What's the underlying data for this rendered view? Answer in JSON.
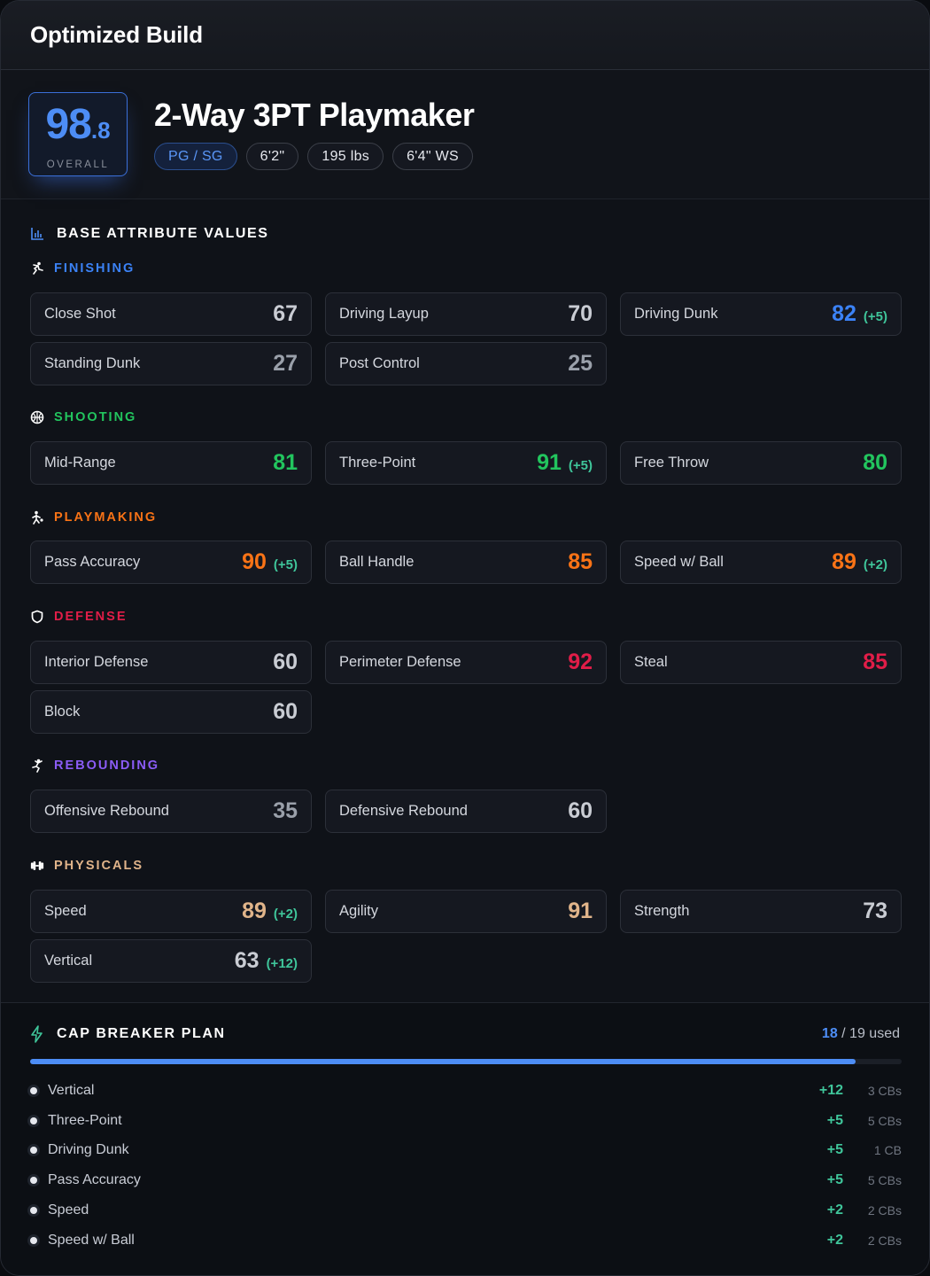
{
  "header": {
    "title": "Optimized Build"
  },
  "build": {
    "overall_int": "98",
    "overall_dec": ".8",
    "overall_label": "OVERALL",
    "name": "2-Way 3PT Playmaker",
    "pills": {
      "position": "PG / SG",
      "height": "6'2\"",
      "weight": "195 lbs",
      "wingspan": "6'4\" WS"
    }
  },
  "attributes": {
    "section_title": "BASE ATTRIBUTE VALUES",
    "finishing": {
      "title": "FINISHING",
      "color": "#3b82f6",
      "icon": "finishing-runner-icon",
      "items": [
        {
          "name": "Close Shot",
          "value": "67",
          "bonus": ""
        },
        {
          "name": "Driving Layup",
          "value": "70",
          "bonus": ""
        },
        {
          "name": "Driving Dunk",
          "value": "82",
          "bonus": "(+5)"
        },
        {
          "name": "Standing Dunk",
          "value": "27",
          "bonus": ""
        },
        {
          "name": "Post Control",
          "value": "25",
          "bonus": ""
        }
      ]
    },
    "shooting": {
      "title": "SHOOTING",
      "color": "#22c55e",
      "icon": "basketball-icon",
      "items": [
        {
          "name": "Mid-Range",
          "value": "81",
          "bonus": ""
        },
        {
          "name": "Three-Point",
          "value": "91",
          "bonus": "(+5)"
        },
        {
          "name": "Free Throw",
          "value": "80",
          "bonus": ""
        }
      ]
    },
    "playmaking": {
      "title": "PLAYMAKING",
      "color": "#f97316",
      "icon": "dribbler-icon",
      "items": [
        {
          "name": "Pass Accuracy",
          "value": "90",
          "bonus": "(+5)"
        },
        {
          "name": "Ball Handle",
          "value": "85",
          "bonus": ""
        },
        {
          "name": "Speed w/ Ball",
          "value": "89",
          "bonus": "(+2)"
        }
      ]
    },
    "defense": {
      "title": "DEFENSE",
      "color": "#e11d48",
      "icon": "shield-icon",
      "items": [
        {
          "name": "Interior Defense",
          "value": "60",
          "bonus": ""
        },
        {
          "name": "Perimeter Defense",
          "value": "92",
          "bonus": ""
        },
        {
          "name": "Steal",
          "value": "85",
          "bonus": ""
        },
        {
          "name": "Block",
          "value": "60",
          "bonus": ""
        }
      ]
    },
    "rebounding": {
      "title": "REBOUNDING",
      "color": "#8b5cf6",
      "icon": "jumper-icon",
      "items": [
        {
          "name": "Offensive Rebound",
          "value": "35",
          "bonus": ""
        },
        {
          "name": "Defensive Rebound",
          "value": "60",
          "bonus": ""
        }
      ]
    },
    "physicals": {
      "title": "PHYSICALS",
      "color": "#e0b48a",
      "icon": "dumbbell-icon",
      "items": [
        {
          "name": "Speed",
          "value": "89",
          "bonus": "(+2)"
        },
        {
          "name": "Agility",
          "value": "91",
          "bonus": ""
        },
        {
          "name": "Strength",
          "value": "73",
          "bonus": ""
        },
        {
          "name": "Vertical",
          "value": "63",
          "bonus": "(+12)"
        }
      ]
    }
  },
  "cap_breakers": {
    "title": "CAP BREAKER PLAN",
    "used": "18",
    "total_text": " / 19 used",
    "progress_fraction": 0.947,
    "items": [
      {
        "name": "Vertical",
        "bonus": "+12",
        "count": "3 CBs"
      },
      {
        "name": "Three-Point",
        "bonus": "+5",
        "count": "5 CBs"
      },
      {
        "name": "Driving Dunk",
        "bonus": "+5",
        "count": "1 CB"
      },
      {
        "name": "Pass Accuracy",
        "bonus": "+5",
        "count": "5 CBs"
      },
      {
        "name": "Speed",
        "bonus": "+2",
        "count": "2 CBs"
      },
      {
        "name": "Speed w/ Ball",
        "bonus": "+2",
        "count": "2 CBs"
      }
    ]
  },
  "colors": {
    "accent": "#4d8df5",
    "bonus": "#3fc59a",
    "low": "#9aa0aa",
    "mid": "#c9ccd3"
  }
}
